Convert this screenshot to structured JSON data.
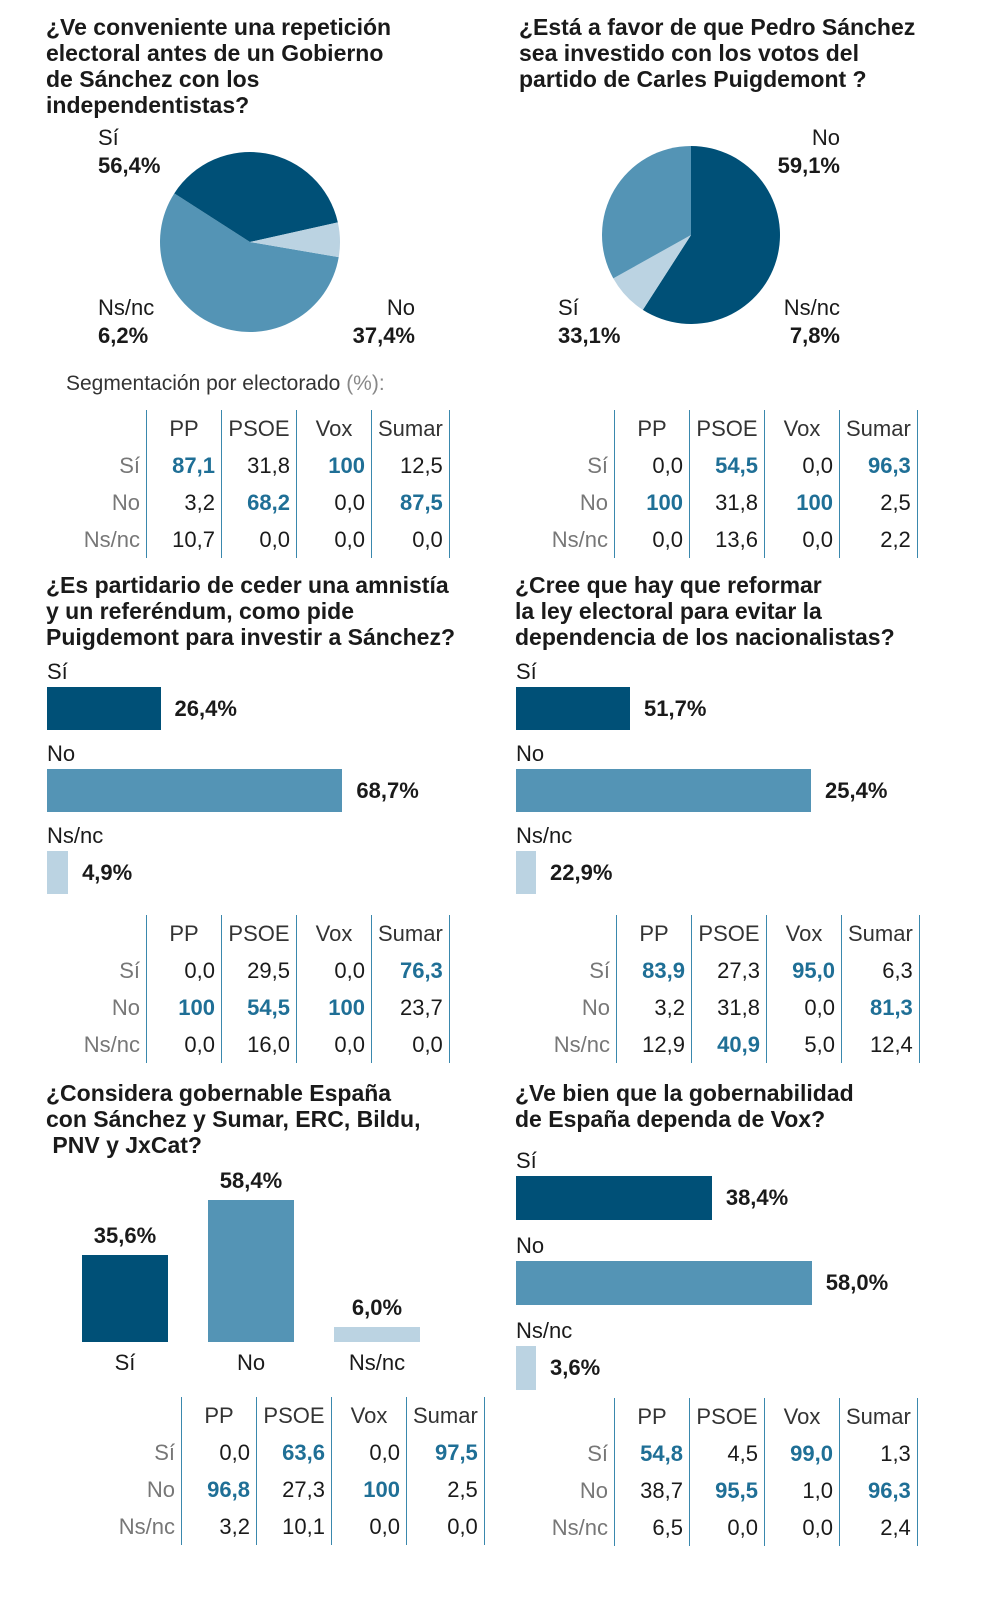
{
  "colors": {
    "dark": "#005077",
    "mid": "#5494b5",
    "light": "#bbd3e2",
    "highlight": "#1f6f96"
  },
  "segmentation_title": "Segmentación por electorado",
  "segmentation_unit": "(%):",
  "chart_data": [
    {
      "type": "pie",
      "title": "¿Ve conveniente una repetición electoral antes de un Gobierno de Sánchez con los independentistas?",
      "categories": [
        "Sí",
        "No",
        "Ns/nc"
      ],
      "values": [
        56.4,
        37.4,
        6.2
      ],
      "value_labels": [
        "56,4%",
        "37,4%",
        "6,2%"
      ],
      "table": {
        "columns": [
          "PP",
          "PSOE",
          "Vox",
          "Sumar"
        ],
        "rows": [
          {
            "label": "Sí",
            "values": [
              "87,1",
              "31,8",
              "100",
              "12,5"
            ]
          },
          {
            "label": "No",
            "values": [
              "3,2",
              "68,2",
              "0,0",
              "87,5"
            ]
          },
          {
            "label": "Ns/nc",
            "values": [
              "10,7",
              "0,0",
              "0,0",
              "0,0"
            ]
          }
        ]
      }
    },
    {
      "type": "pie",
      "title": "¿Está a favor de que Pedro Sánchez sea investido con los votos del partido de Carles Puigdemont ?",
      "categories": [
        "Sí",
        "No",
        "Ns/nc"
      ],
      "values": [
        33.1,
        59.1,
        7.8
      ],
      "value_labels": [
        "33,1%",
        "59,1%",
        "7,8%"
      ],
      "table": {
        "columns": [
          "PP",
          "PSOE",
          "Vox",
          "Sumar"
        ],
        "rows": [
          {
            "label": "Sí",
            "values": [
              "0,0",
              "54,5",
              "0,0",
              "96,3"
            ]
          },
          {
            "label": "No",
            "values": [
              "100",
              "31,8",
              "100",
              "2,5"
            ]
          },
          {
            "label": "Ns/nc",
            "values": [
              "0,0",
              "13,6",
              "0,0",
              "2,2"
            ]
          }
        ]
      }
    },
    {
      "type": "bar",
      "orientation": "horizontal",
      "title": "¿Es partidario de ceder una amnistía y un referéndum, como pide Puigdemont para investir a Sánchez?",
      "categories": [
        "Sí",
        "No",
        "Ns/nc"
      ],
      "values": [
        26.4,
        68.7,
        4.9
      ],
      "value_labels": [
        "26,4%",
        "68,7%",
        "4,9%"
      ],
      "table": {
        "columns": [
          "PP",
          "PSOE",
          "Vox",
          "Sumar"
        ],
        "rows": [
          {
            "label": "Sí",
            "values": [
              "0,0",
              "29,5",
              "0,0",
              "76,3"
            ]
          },
          {
            "label": "No",
            "values": [
              "100",
              "54,5",
              "100",
              "23,7"
            ]
          },
          {
            "label": "Ns/nc",
            "values": [
              "0,0",
              "16,0",
              "0,0",
              "0,0"
            ]
          }
        ]
      }
    },
    {
      "type": "bar",
      "orientation": "horizontal",
      "title": "¿Cree que hay que reformar la ley electoral para evitar la dependencia de los nacionalistas?",
      "categories": [
        "Sí",
        "No",
        "Ns/nc"
      ],
      "values": [
        51.7,
        25.4,
        22.9
      ],
      "value_labels": [
        "51,7%",
        "25,4%",
        "22,9%"
      ],
      "table": {
        "columns": [
          "PP",
          "PSOE",
          "Vox",
          "Sumar"
        ],
        "rows": [
          {
            "label": "Sí",
            "values": [
              "83,9",
              "27,3",
              "95,0",
              "6,3"
            ]
          },
          {
            "label": "No",
            "values": [
              "3,2",
              "31,8",
              "0,0",
              "81,3"
            ]
          },
          {
            "label": "Ns/nc",
            "values": [
              "12,9",
              "40,9",
              "5,0",
              "12,4"
            ]
          }
        ]
      }
    },
    {
      "type": "bar",
      "orientation": "vertical",
      "title": "¿Considera gobernable España con Sánchez y Sumar, ERC, Bildu, PNV y JxCat?",
      "categories": [
        "Sí",
        "No",
        "Ns/nc"
      ],
      "values": [
        35.6,
        58.4,
        6.0
      ],
      "value_labels": [
        "35,6%",
        "58,4%",
        "6,0%"
      ],
      "table": {
        "columns": [
          "PP",
          "PSOE",
          "Vox",
          "Sumar"
        ],
        "rows": [
          {
            "label": "Sí",
            "values": [
              "0,0",
              "63,6",
              "0,0",
              "97,5"
            ]
          },
          {
            "label": "No",
            "values": [
              "96,8",
              "27,3",
              "100",
              "2,5"
            ]
          },
          {
            "label": "Ns/nc",
            "values": [
              "3,2",
              "10,1",
              "0,0",
              "0,0"
            ]
          }
        ]
      }
    },
    {
      "type": "bar",
      "orientation": "horizontal",
      "title": "¿Ve bien que la gobernabilidad de España dependa de Vox?",
      "categories": [
        "Sí",
        "No",
        "Ns/nc"
      ],
      "values": [
        38.4,
        58.0,
        3.6
      ],
      "value_labels": [
        "38,4%",
        "58,0%",
        "3,6%"
      ],
      "table": {
        "columns": [
          "PP",
          "PSOE",
          "Vox",
          "Sumar"
        ],
        "rows": [
          {
            "label": "Sí",
            "values": [
              "54,8",
              "4,5",
              "99,0",
              "1,3"
            ]
          },
          {
            "label": "No",
            "values": [
              "38,7",
              "95,5",
              "1,0",
              "96,3"
            ]
          },
          {
            "label": "Ns/nc",
            "values": [
              "6,5",
              "0,0",
              "0,0",
              "2,4"
            ]
          }
        ]
      }
    }
  ]
}
